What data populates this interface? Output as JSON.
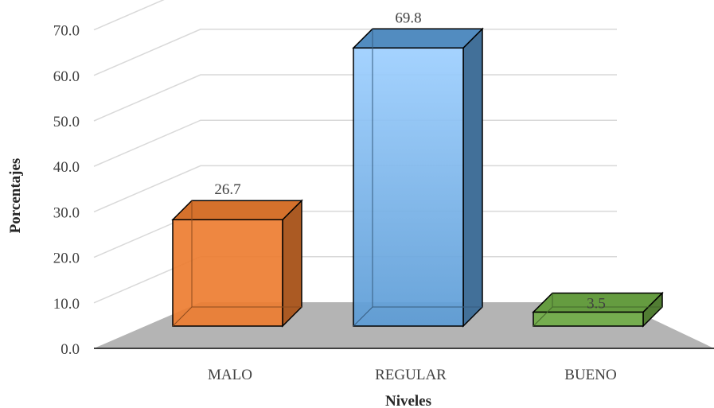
{
  "chart_data": {
    "type": "bar",
    "categories": [
      "MALO",
      "REGULAR",
      "BUENO"
    ],
    "values": [
      26.7,
      69.8,
      3.5
    ],
    "value_labels": [
      "26.7",
      "69.8",
      "3.5"
    ],
    "colors": [
      "#ED7D31",
      "#5B9BD5",
      "#70AD47"
    ],
    "ylabel": "Porcentajes",
    "xlabel": "Niveles",
    "ylim": [
      0,
      70
    ],
    "yticks": [
      "0.0",
      "10.0",
      "20.0",
      "30.0",
      "40.0",
      "50.0",
      "60.0",
      "70.0"
    ],
    "grid": true,
    "style": "3d-clustered-column"
  }
}
